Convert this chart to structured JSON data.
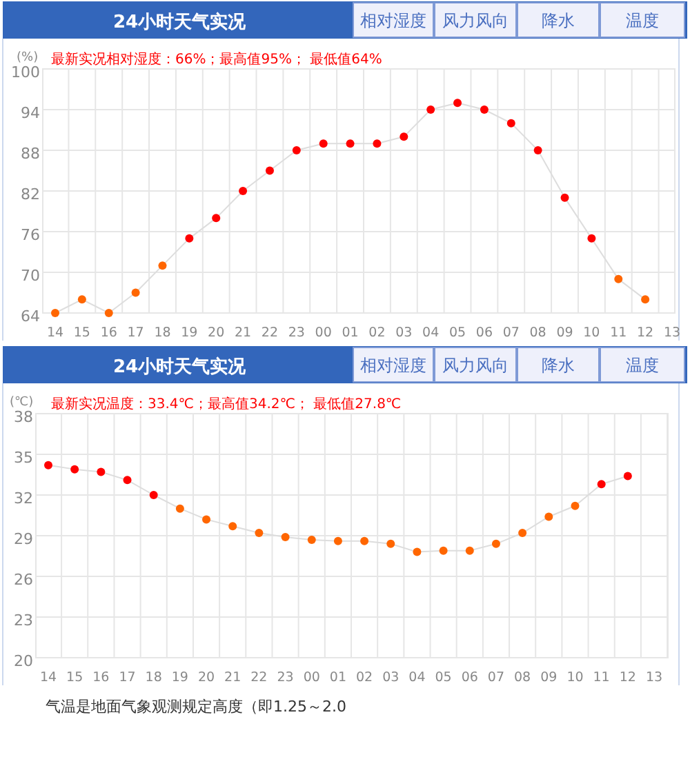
{
  "chart_data": [
    {
      "type": "line",
      "title": "24小时天气实况",
      "subtitle": "最新实况相对湿度：66%；最高值95%； 最低值64%",
      "ylabel": "(%)",
      "categories": [
        "14",
        "15",
        "16",
        "17",
        "18",
        "19",
        "20",
        "21",
        "22",
        "23",
        "00",
        "01",
        "02",
        "03",
        "04",
        "05",
        "06",
        "07",
        "08",
        "09",
        "10",
        "11",
        "12",
        "13"
      ],
      "series": [
        {
          "color": "#dddddd",
          "values": [
            64,
            66,
            64,
            67,
            71,
            75,
            78,
            82,
            85,
            88,
            89,
            89,
            89,
            90,
            94,
            95,
            94,
            92,
            88,
            81,
            75,
            69,
            66,
            null
          ],
          "colors": [
            "#ff6600",
            "#ff6600",
            "#ff6600",
            "#ff6600",
            "#ff6600",
            "#ff0000",
            "#ff0000",
            "#ff0000",
            "#ff0000",
            "#ff0000",
            "#ff0000",
            "#ff0000",
            "#ff0000",
            "#ff0000",
            "#ff0000",
            "#ff0000",
            "#ff0000",
            "#ff0000",
            "#ff0000",
            "#ff0000",
            "#ff0000",
            "#ff6600",
            "#ff6600",
            null
          ]
        }
      ],
      "ylim": [
        64,
        100
      ],
      "yticks": [
        64,
        70,
        76,
        82,
        88,
        94,
        100
      ],
      "grid": true,
      "marker": "circle",
      "annotations": [
        "相对湿度",
        "风力风向",
        "降水",
        "温度"
      ]
    },
    {
      "type": "line",
      "title": "24小时天气实况",
      "subtitle": "最新实况温度：33.4℃；最高值34.2℃； 最低值27.8℃",
      "ylabel": "(℃)",
      "categories": [
        "14",
        "15",
        "16",
        "17",
        "18",
        "19",
        "20",
        "21",
        "22",
        "23",
        "00",
        "01",
        "02",
        "03",
        "04",
        "05",
        "06",
        "07",
        "08",
        "09",
        "10",
        "11",
        "12",
        "13"
      ],
      "series": [
        {
          "color": "#dddddd",
          "values": [
            34.2,
            33.9,
            33.7,
            33.1,
            32.0,
            31.0,
            30.2,
            29.7,
            29.2,
            28.9,
            28.7,
            28.6,
            28.6,
            28.4,
            27.8,
            27.9,
            27.9,
            28.4,
            29.2,
            30.4,
            31.2,
            32.8,
            33.4,
            null
          ],
          "colors": [
            "#ff0000",
            "#ff0000",
            "#ff0000",
            "#ff0000",
            "#ff0000",
            "#ff6600",
            "#ff6600",
            "#ff6600",
            "#ff6600",
            "#ff6600",
            "#ff6600",
            "#ff6600",
            "#ff6600",
            "#ff6600",
            "#ff6600",
            "#ff6600",
            "#ff6600",
            "#ff6600",
            "#ff6600",
            "#ff6600",
            "#ff6600",
            "#ff0000",
            "#ff0000",
            null
          ]
        }
      ],
      "ylim": [
        20,
        38
      ],
      "yticks": [
        20,
        23,
        26,
        29,
        32,
        35,
        38
      ],
      "grid": true,
      "marker": "circle",
      "annotations": [
        "相对湿度",
        "风力风向",
        "降水",
        "温度",
        "气温是地面气象观测规定高度（即1.25～2.0"
      ]
    }
  ]
}
